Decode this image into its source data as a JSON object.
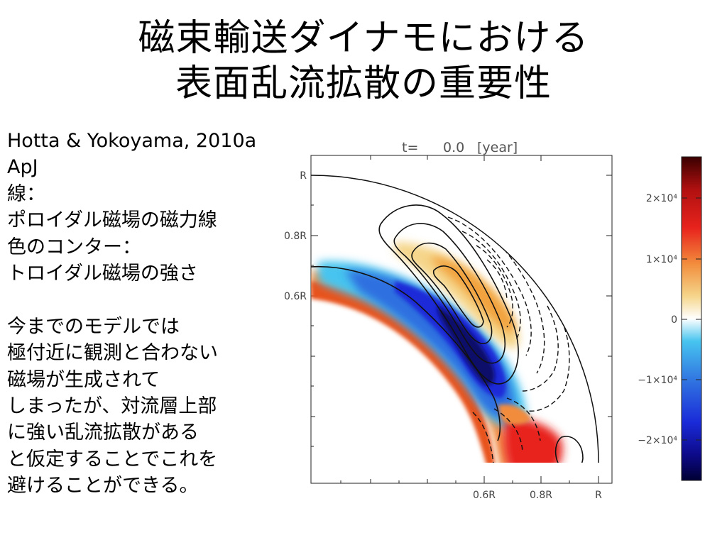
{
  "slide": {
    "title_lines": [
      "磁束輸送ダイナモにおける",
      "表面乱流拡散の重要性"
    ],
    "body_lines": [
      "Hotta & Yokoyama, 2010a",
      "ApJ",
      "線：",
      "ポロイダル磁場の磁力線",
      "色のコンター：",
      "トロイダル磁場の強さ",
      "",
      "今までのモデルでは",
      "極付近に観測と合わない",
      "磁場が生成されて",
      "しまったが、対流層上部",
      "に強い乱流拡散がある",
      "と仮定することでこれを",
      "避けることができる。"
    ]
  },
  "figure": {
    "time_label": "t=",
    "time_value": "0.0",
    "time_unit": "[year]",
    "y_ticks": [
      "R",
      "0.8R",
      "0.6R"
    ],
    "x_ticks": [
      "0.6R",
      "0.8R",
      "R"
    ],
    "colorbar_ticks": [
      "2×10⁴",
      "1×10⁴",
      "0",
      "−1×10⁴",
      "−2×10⁴"
    ],
    "colors": {
      "positive_max": "#3a0000",
      "positive": "#e8231d",
      "weak_positive": "#f3d07a",
      "zero": "#ffffff",
      "weak_negative": "#47c4ef",
      "negative": "#1a2bd8",
      "negative_max": "#000033"
    }
  }
}
